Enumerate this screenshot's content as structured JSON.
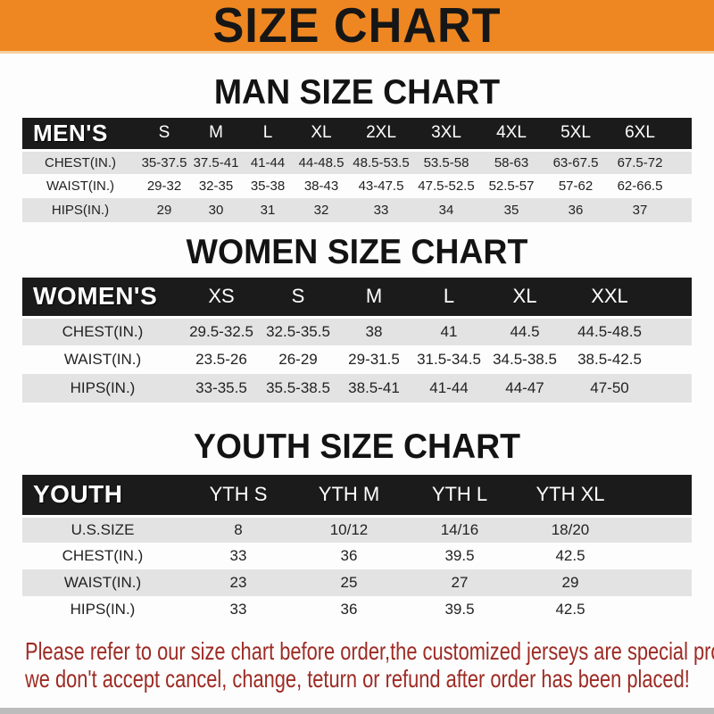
{
  "banner": {
    "title": "SIZE CHART"
  },
  "colors": {
    "banner_bg": "#ee8722",
    "header_bar_bg": "#1b1b1b",
    "row_alt_bg": "#e3e3e3",
    "footer_text": "#9d2b24"
  },
  "sections": [
    {
      "title": "MAN SIZE CHART",
      "corner_label": "MEN'S",
      "columns": [
        "S",
        "M",
        "L",
        "XL",
        "2XL",
        "3XL",
        "4XL",
        "5XL",
        "6XL"
      ],
      "rows": [
        {
          "label": "CHEST(IN.)",
          "values": [
            "35-37.5",
            "37.5-41",
            "41-44",
            "44-48.5",
            "48.5-53.5",
            "53.5-58",
            "58-63",
            "63-67.5",
            "67.5-72"
          ]
        },
        {
          "label": "WAIST(IN.)",
          "values": [
            "29-32",
            "32-35",
            "35-38",
            "38-43",
            "43-47.5",
            "47.5-52.5",
            "52.5-57",
            "57-62",
            "62-66.5"
          ]
        },
        {
          "label": "HIPS(IN.)",
          "values": [
            "29",
            "30",
            "31",
            "32",
            "33",
            "34",
            "35",
            "36",
            "37"
          ]
        }
      ]
    },
    {
      "title": "WOMEN SIZE CHART",
      "corner_label": "WOMEN'S",
      "columns": [
        "XS",
        "S",
        "M",
        "L",
        "XL",
        "XXL"
      ],
      "rows": [
        {
          "label": "CHEST(IN.)",
          "values": [
            "29.5-32.5",
            "32.5-35.5",
            "38",
            "41",
            "44.5",
            "44.5-48.5"
          ]
        },
        {
          "label": "WAIST(IN.)",
          "values": [
            "23.5-26",
            "26-29",
            "29-31.5",
            "31.5-34.5",
            "34.5-38.5",
            "38.5-42.5"
          ]
        },
        {
          "label": "HIPS(IN.)",
          "values": [
            "33-35.5",
            "35.5-38.5",
            "38.5-41",
            "41-44",
            "44-47",
            "47-50"
          ]
        }
      ]
    },
    {
      "title": "YOUTH SIZE CHART",
      "corner_label": "YOUTH",
      "columns": [
        "YTH S",
        "YTH M",
        "YTH L",
        "YTH XL"
      ],
      "rows": [
        {
          "label": "U.S.SIZE",
          "values": [
            "8",
            "10/12",
            "14/16",
            "18/20"
          ]
        },
        {
          "label": "CHEST(IN.)",
          "values": [
            "33",
            "36",
            "39.5",
            "42.5"
          ]
        },
        {
          "label": "WAIST(IN.)",
          "values": [
            "23",
            "25",
            "27",
            "29"
          ]
        },
        {
          "label": "HIPS(IN.)",
          "values": [
            "33",
            "36",
            "39.5",
            "42.5"
          ]
        }
      ]
    }
  ],
  "footer": {
    "line1": "Please refer to our size chart before order,the customized jerseys are special products,",
    "line2": "we don't accept cancel, change, teturn or refund after order has been placed!"
  }
}
